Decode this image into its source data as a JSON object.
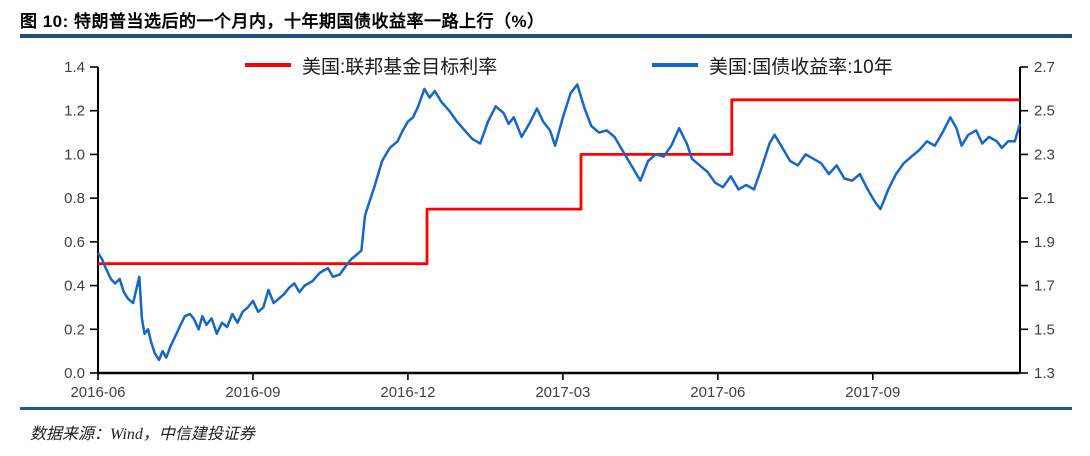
{
  "page": {
    "title": "图 10: 特朗普当选后的一个月内，十年期国债收益率一路上行（%）",
    "source": "数据来源：Wind，中信建投证券"
  },
  "colors": {
    "rule_top": "#1F4E79",
    "rule_bottom": "#1D5C99",
    "axis": "#000000",
    "tick_label": "#3f3f3f",
    "red": "#FE0000",
    "blue": "#1467C8"
  },
  "chart_data": {
    "type": "line",
    "title": "特朗普当选后的一个月内，十年期国债收益率一路上行（%）",
    "x_unit": "months since 2016-06",
    "x_range": [
      0,
      17.85
    ],
    "grid": false,
    "legend_position": "top-center",
    "x_ticks": [
      {
        "x": 0,
        "label": "2016-06"
      },
      {
        "x": 3,
        "label": "2016-09"
      },
      {
        "x": 6,
        "label": "2016-12"
      },
      {
        "x": 9,
        "label": "2017-03"
      },
      {
        "x": 12,
        "label": "2017-06"
      },
      {
        "x": 15,
        "label": "2017-09"
      }
    ],
    "y_left": {
      "min": 0,
      "max": 1.4,
      "ticks": [
        {
          "v": 0.0,
          "label": "0.0"
        },
        {
          "v": 0.2,
          "label": "0.2"
        },
        {
          "v": 0.4,
          "label": "0.4"
        },
        {
          "v": 0.6,
          "label": "0.6"
        },
        {
          "v": 0.8,
          "label": "0.8"
        },
        {
          "v": 1.0,
          "label": "1.0"
        },
        {
          "v": 1.2,
          "label": "1.2"
        },
        {
          "v": 1.4,
          "label": "1.4"
        }
      ]
    },
    "y_right": {
      "min": 1.3,
      "max": 2.7,
      "ticks": [
        {
          "v": 1.3,
          "label": "1.3"
        },
        {
          "v": 1.5,
          "label": "1.5"
        },
        {
          "v": 1.7,
          "label": "1.7"
        },
        {
          "v": 1.9,
          "label": "1.9"
        },
        {
          "v": 2.1,
          "label": "2.1"
        },
        {
          "v": 2.3,
          "label": "2.3"
        },
        {
          "v": 2.5,
          "label": "2.5"
        },
        {
          "v": 2.7,
          "label": "2.7"
        }
      ]
    },
    "legend": [
      {
        "label": "美国:联邦基金目标利率",
        "color": "#FE0000"
      },
      {
        "label": "美国:国债收益率:10年",
        "color": "#1467C8"
      }
    ],
    "series": [
      {
        "name": "美国:联邦基金目标利率",
        "axis": "left",
        "color": "#FE0000",
        "width": 2.8,
        "points": [
          [
            0,
            0.5
          ],
          [
            6.37,
            0.5
          ],
          [
            6.37,
            0.75
          ],
          [
            9.35,
            0.75
          ],
          [
            9.35,
            1.0
          ],
          [
            12.27,
            1.0
          ],
          [
            12.27,
            1.25
          ],
          [
            17.85,
            1.25
          ]
        ]
      },
      {
        "name": "美国:国债收益率:10年",
        "axis": "right",
        "color": "#1467C8",
        "width": 2.5,
        "points": [
          [
            0.0,
            1.85
          ],
          [
            0.08,
            1.82
          ],
          [
            0.15,
            1.78
          ],
          [
            0.25,
            1.73
          ],
          [
            0.33,
            1.71
          ],
          [
            0.42,
            1.73
          ],
          [
            0.5,
            1.67
          ],
          [
            0.58,
            1.64
          ],
          [
            0.68,
            1.62
          ],
          [
            0.75,
            1.69
          ],
          [
            0.8,
            1.74
          ],
          [
            0.85,
            1.55
          ],
          [
            0.9,
            1.48
          ],
          [
            0.97,
            1.5
          ],
          [
            1.03,
            1.44
          ],
          [
            1.1,
            1.39
          ],
          [
            1.18,
            1.36
          ],
          [
            1.25,
            1.4
          ],
          [
            1.32,
            1.37
          ],
          [
            1.4,
            1.42
          ],
          [
            1.5,
            1.47
          ],
          [
            1.6,
            1.52
          ],
          [
            1.68,
            1.56
          ],
          [
            1.78,
            1.57
          ],
          [
            1.85,
            1.55
          ],
          [
            1.95,
            1.5
          ],
          [
            2.02,
            1.56
          ],
          [
            2.1,
            1.52
          ],
          [
            2.2,
            1.55
          ],
          [
            2.3,
            1.48
          ],
          [
            2.4,
            1.53
          ],
          [
            2.5,
            1.51
          ],
          [
            2.6,
            1.57
          ],
          [
            2.7,
            1.53
          ],
          [
            2.8,
            1.58
          ],
          [
            2.9,
            1.6
          ],
          [
            3.0,
            1.63
          ],
          [
            3.1,
            1.58
          ],
          [
            3.2,
            1.6
          ],
          [
            3.3,
            1.68
          ],
          [
            3.4,
            1.62
          ],
          [
            3.5,
            1.64
          ],
          [
            3.6,
            1.66
          ],
          [
            3.7,
            1.69
          ],
          [
            3.8,
            1.71
          ],
          [
            3.9,
            1.67
          ],
          [
            4.0,
            1.7
          ],
          [
            4.15,
            1.72
          ],
          [
            4.3,
            1.76
          ],
          [
            4.45,
            1.78
          ],
          [
            4.55,
            1.74
          ],
          [
            4.68,
            1.75
          ],
          [
            4.8,
            1.79
          ],
          [
            4.9,
            1.82
          ],
          [
            5.0,
            1.84
          ],
          [
            5.1,
            1.86
          ],
          [
            5.17,
            2.02
          ],
          [
            5.25,
            2.08
          ],
          [
            5.35,
            2.15
          ],
          [
            5.5,
            2.27
          ],
          [
            5.65,
            2.33
          ],
          [
            5.8,
            2.36
          ],
          [
            5.9,
            2.41
          ],
          [
            6.0,
            2.45
          ],
          [
            6.1,
            2.47
          ],
          [
            6.2,
            2.52
          ],
          [
            6.32,
            2.6
          ],
          [
            6.42,
            2.56
          ],
          [
            6.52,
            2.59
          ],
          [
            6.65,
            2.54
          ],
          [
            6.8,
            2.5
          ],
          [
            6.95,
            2.45
          ],
          [
            7.1,
            2.41
          ],
          [
            7.25,
            2.37
          ],
          [
            7.4,
            2.35
          ],
          [
            7.55,
            2.45
          ],
          [
            7.7,
            2.52
          ],
          [
            7.85,
            2.49
          ],
          [
            7.95,
            2.44
          ],
          [
            8.05,
            2.47
          ],
          [
            8.2,
            2.38
          ],
          [
            8.35,
            2.44
          ],
          [
            8.5,
            2.51
          ],
          [
            8.62,
            2.45
          ],
          [
            8.75,
            2.41
          ],
          [
            8.85,
            2.34
          ],
          [
            9.0,
            2.47
          ],
          [
            9.15,
            2.58
          ],
          [
            9.28,
            2.62
          ],
          [
            9.42,
            2.51
          ],
          [
            9.55,
            2.43
          ],
          [
            9.7,
            2.4
          ],
          [
            9.85,
            2.41
          ],
          [
            10.0,
            2.38
          ],
          [
            10.15,
            2.32
          ],
          [
            10.35,
            2.24
          ],
          [
            10.5,
            2.18
          ],
          [
            10.65,
            2.27
          ],
          [
            10.8,
            2.3
          ],
          [
            10.95,
            2.29
          ],
          [
            11.1,
            2.34
          ],
          [
            11.25,
            2.42
          ],
          [
            11.4,
            2.35
          ],
          [
            11.5,
            2.28
          ],
          [
            11.65,
            2.25
          ],
          [
            11.8,
            2.22
          ],
          [
            11.95,
            2.17
          ],
          [
            12.1,
            2.15
          ],
          [
            12.25,
            2.2
          ],
          [
            12.4,
            2.14
          ],
          [
            12.55,
            2.16
          ],
          [
            12.7,
            2.14
          ],
          [
            12.85,
            2.24
          ],
          [
            13.0,
            2.35
          ],
          [
            13.1,
            2.39
          ],
          [
            13.25,
            2.33
          ],
          [
            13.4,
            2.27
          ],
          [
            13.55,
            2.25
          ],
          [
            13.7,
            2.3
          ],
          [
            13.85,
            2.28
          ],
          [
            14.0,
            2.26
          ],
          [
            14.15,
            2.21
          ],
          [
            14.3,
            2.25
          ],
          [
            14.45,
            2.19
          ],
          [
            14.6,
            2.18
          ],
          [
            14.75,
            2.21
          ],
          [
            14.9,
            2.14
          ],
          [
            15.05,
            2.08
          ],
          [
            15.15,
            2.05
          ],
          [
            15.3,
            2.14
          ],
          [
            15.45,
            2.21
          ],
          [
            15.6,
            2.26
          ],
          [
            15.75,
            2.29
          ],
          [
            15.9,
            2.32
          ],
          [
            16.05,
            2.36
          ],
          [
            16.2,
            2.34
          ],
          [
            16.35,
            2.4
          ],
          [
            16.5,
            2.47
          ],
          [
            16.62,
            2.42
          ],
          [
            16.72,
            2.34
          ],
          [
            16.85,
            2.39
          ],
          [
            17.0,
            2.41
          ],
          [
            17.12,
            2.35
          ],
          [
            17.25,
            2.38
          ],
          [
            17.4,
            2.36
          ],
          [
            17.5,
            2.33
          ],
          [
            17.62,
            2.36
          ],
          [
            17.75,
            2.36
          ],
          [
            17.85,
            2.44
          ]
        ]
      }
    ]
  }
}
